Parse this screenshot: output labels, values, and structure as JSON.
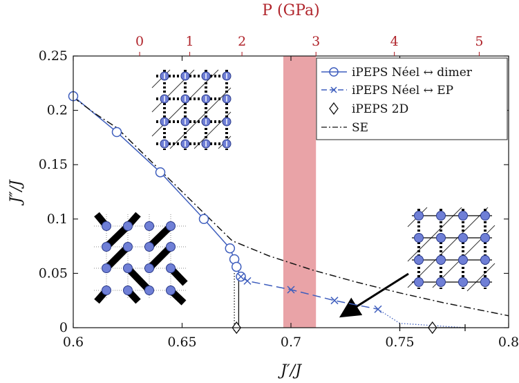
{
  "chart_data": {
    "type": "line",
    "xlabel": "J′/J",
    "ylabel": "J″/J",
    "xlim": [
      0.6,
      0.8
    ],
    "ylim": [
      0,
      0.25
    ],
    "x_ticks": [
      "0.6",
      "0.65",
      "0.7",
      "0.75",
      "0.8"
    ],
    "y_ticks": [
      "0",
      "0.05",
      "0.1",
      "0.15",
      "0.2",
      "0.25"
    ],
    "top_axis": {
      "label": "P (GPa)",
      "ticks": [
        {
          "label": "0",
          "x": 0.6305
        },
        {
          "label": "1",
          "x": 0.6535
        },
        {
          "label": "2",
          "x": 0.6775
        },
        {
          "label": "3",
          "x": 0.7115
        },
        {
          "label": "4",
          "x": 0.7475
        },
        {
          "label": "5",
          "x": 0.7865
        }
      ]
    },
    "shaded_region": {
      "x": [
        0.6965,
        0.7115
      ],
      "color": "#e9a3a7"
    },
    "series": [
      {
        "name": "iPEPS Néel ↔ dimer",
        "color": "#3d5dbd",
        "marker": "circle",
        "style": "solid",
        "x": [
          0.6,
          0.62,
          0.64,
          0.66,
          0.672,
          0.674,
          0.675,
          0.677
        ],
        "y": [
          0.213,
          0.18,
          0.143,
          0.1,
          0.073,
          0.063,
          0.056,
          0.047
        ]
      },
      {
        "name": "iPEPS Néel ↔ EP",
        "color": "#3d5dbd",
        "marker": "x",
        "style": "dashed",
        "x": [
          0.677,
          0.68,
          0.7,
          0.72,
          0.74
        ],
        "y": [
          0.047,
          0.043,
          0.035,
          0.025,
          0.017
        ]
      },
      {
        "name": "iPEPS 2D",
        "color": "#111111",
        "marker": "diamond",
        "style": "none",
        "x": [
          0.675,
          0.765
        ],
        "y": [
          0,
          0
        ],
        "xerr": [
          0.001,
          0.015
        ]
      },
      {
        "name": "SE",
        "color": "#111111",
        "marker": "none",
        "style": "dashdot",
        "x": [
          0.6,
          0.61,
          0.62,
          0.673,
          0.69,
          0.71,
          0.73,
          0.75,
          0.77,
          0.8
        ],
        "y": [
          0.212,
          0.197,
          0.184,
          0.08,
          0.066,
          0.053,
          0.042,
          0.032,
          0.023,
          0.011
        ]
      }
    ],
    "extra_lines": [
      {
        "style": "dotted",
        "x": [
          0.674,
          0.674
        ],
        "y": [
          0.063,
          0
        ]
      },
      {
        "style": "solid",
        "x": [
          0.676,
          0.676
        ],
        "y": [
          0.047,
          0
        ]
      },
      {
        "style": "dotted",
        "x": [
          0.74,
          0.75,
          0.78
        ],
        "y": [
          0.017,
          0.004,
          0
        ]
      }
    ],
    "legend": {
      "position": "top-right"
    },
    "colors": {
      "axis": "#111111",
      "top_axis": "#b0242b",
      "series": "#3d5dbd",
      "node": "#6f7fd6"
    }
  }
}
